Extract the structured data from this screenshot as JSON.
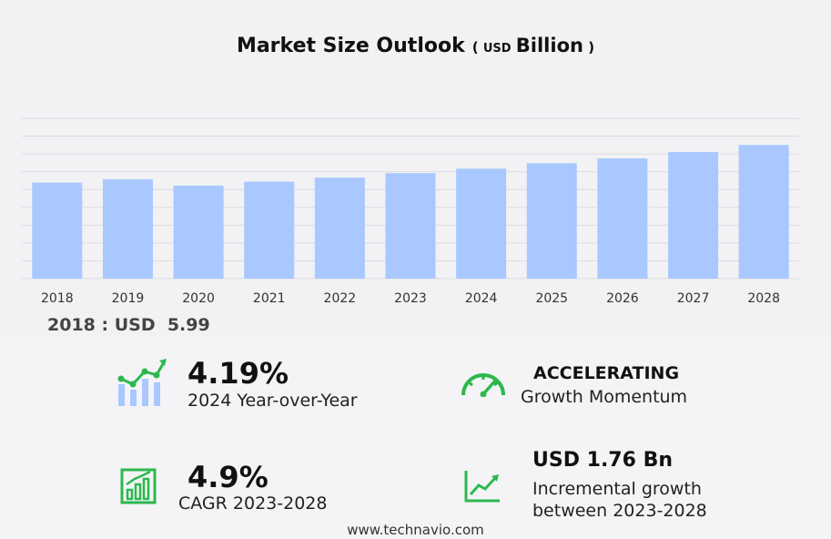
{
  "header": {
    "title": "Market Size Outlook",
    "unit_open": "(",
    "unit_prefix": "USD",
    "unit_main": "Billion",
    "unit_close": ")"
  },
  "chart_data": {
    "type": "bar",
    "categories": [
      "2018",
      "2019",
      "2020",
      "2021",
      "2022",
      "2023",
      "2024",
      "2025",
      "2026",
      "2027",
      "2028"
    ],
    "values": [
      5.99,
      6.2,
      5.8,
      6.05,
      6.3,
      6.58,
      6.86,
      7.2,
      7.5,
      7.9,
      8.34
    ],
    "ylim": [
      0,
      10
    ],
    "grid": true,
    "bar_color": "#a8c8ff"
  },
  "baseline": {
    "label": "2018 : USD",
    "value": "5.99"
  },
  "stats": {
    "yoy": {
      "value": "4.19%",
      "label": "2024 Year-over-Year"
    },
    "momentum": {
      "value": "ACCELERATING",
      "label": "Growth Momentum"
    },
    "cagr": {
      "value": "4.9%",
      "label": "CAGR 2023-2028"
    },
    "incremental": {
      "value": "USD 1.76 Bn",
      "label_line1": "Incremental growth",
      "label_line2": "between 2023-2028"
    }
  },
  "icons": {
    "yoy": "growth-chart-icon",
    "momentum": "speedometer-icon",
    "cagr": "bar-chart-icon",
    "incremental": "line-chart-icon",
    "accent": "#2db84d"
  },
  "footer": {
    "url": "www.technavio.com"
  }
}
